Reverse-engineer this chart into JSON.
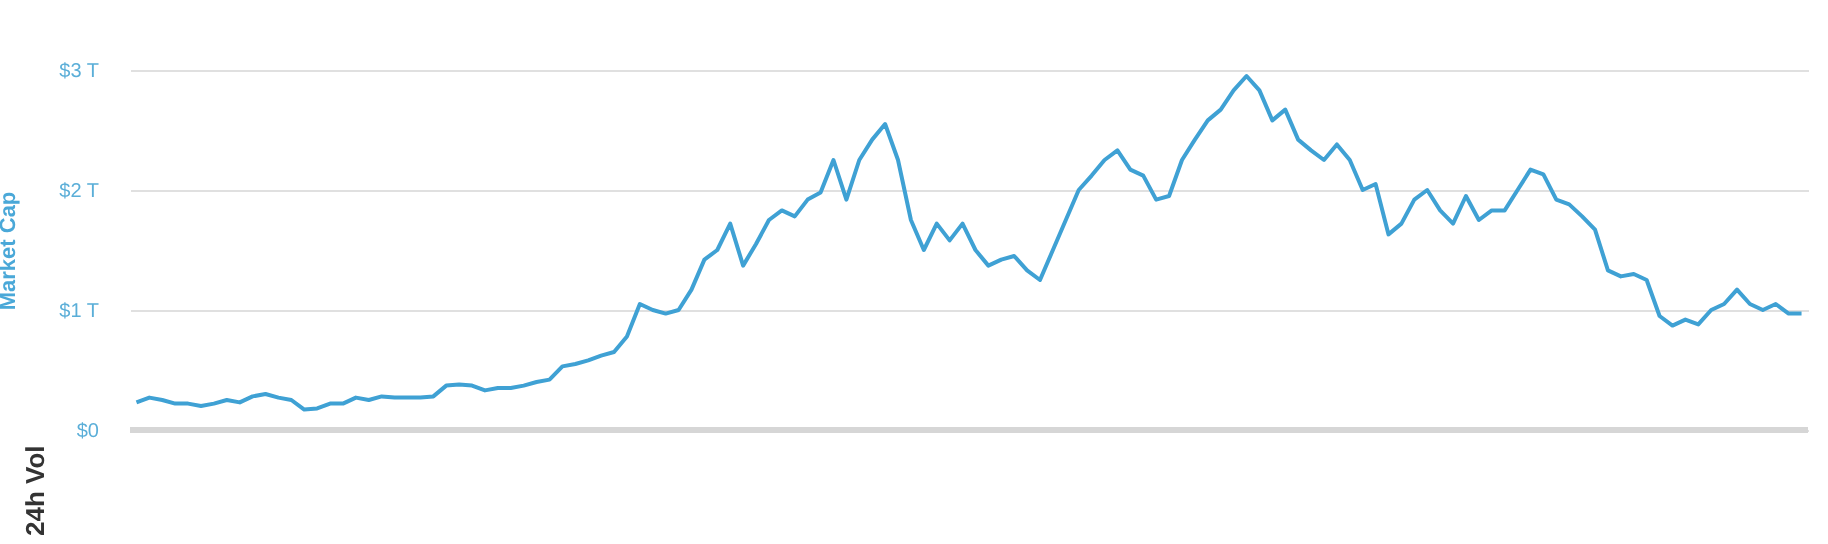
{
  "chart_data": {
    "type": "line",
    "ylabel": "Market Cap",
    "annotations": [
      "24h Vol"
    ],
    "grid": "y",
    "ylim": [
      0,
      3
    ],
    "yticks": [
      {
        "value": 0,
        "label": "$0"
      },
      {
        "value": 1,
        "label": "$1 T"
      },
      {
        "value": 2,
        "label": "$2 T"
      },
      {
        "value": 3,
        "label": "$3 T"
      }
    ],
    "categories": [
      null,
      null,
      null,
      null,
      null,
      null,
      null,
      null,
      null,
      null,
      null,
      null,
      null,
      null,
      null,
      null,
      null,
      null,
      null,
      null,
      null,
      null,
      null,
      null,
      null,
      null,
      null,
      null,
      null,
      null,
      null,
      null,
      null,
      null,
      null,
      null,
      null,
      null,
      null,
      null,
      null,
      null,
      null,
      null,
      null,
      null,
      null,
      null,
      null,
      null,
      null,
      null,
      null,
      null,
      null,
      null,
      null,
      null,
      null,
      null,
      null,
      null,
      null,
      null,
      null,
      null,
      null,
      null,
      null,
      null,
      null,
      null,
      null,
      null,
      null,
      null,
      null,
      null,
      null,
      null,
      null,
      null,
      null,
      null,
      null,
      null,
      null,
      null,
      null,
      null,
      null,
      null,
      null,
      null,
      null,
      null,
      null,
      null,
      null,
      null,
      null,
      null,
      null,
      null,
      null,
      null,
      null,
      null,
      null,
      null,
      null,
      null,
      null,
      null,
      null,
      null,
      null,
      null,
      null,
      null,
      null,
      null,
      null,
      null,
      null,
      null,
      null,
      null,
      null,
      null
    ],
    "series": [
      {
        "color": "#3fa1d4",
        "values": [
          0.23,
          0.27,
          0.25,
          0.22,
          0.22,
          0.2,
          0.22,
          0.25,
          0.23,
          0.28,
          0.3,
          0.27,
          0.25,
          0.17,
          0.18,
          0.22,
          0.22,
          0.27,
          0.25,
          0.28,
          0.27,
          0.27,
          0.27,
          0.28,
          0.37,
          0.38,
          0.37,
          0.33,
          0.35,
          0.35,
          0.37,
          0.4,
          0.42,
          0.53,
          0.55,
          0.58,
          0.62,
          0.65,
          0.78,
          1.05,
          1.0,
          0.97,
          1.0,
          1.17,
          1.42,
          1.5,
          1.72,
          1.37,
          1.55,
          1.75,
          1.83,
          1.78,
          1.92,
          1.98,
          2.25,
          1.92,
          2.25,
          2.42,
          2.55,
          2.25,
          1.75,
          1.5,
          1.72,
          1.58,
          1.72,
          1.5,
          1.37,
          1.42,
          1.45,
          1.33,
          1.25,
          1.5,
          1.75,
          2.0,
          2.12,
          2.25,
          2.33,
          2.17,
          2.12,
          1.92,
          1.95,
          2.25,
          2.42,
          2.58,
          2.67,
          2.83,
          2.95,
          2.83,
          2.58,
          2.67,
          2.42,
          2.33,
          2.25,
          2.38,
          2.25,
          2.0,
          2.05,
          1.63,
          1.72,
          1.92,
          2.0,
          1.83,
          1.72,
          1.95,
          1.75,
          1.83,
          1.83,
          2.0,
          2.17,
          2.13,
          1.92,
          1.88,
          1.78,
          1.67,
          1.33,
          1.28,
          1.3,
          1.25,
          0.95,
          0.87,
          0.92,
          0.88,
          1.0,
          1.05,
          1.17,
          1.05,
          1.0,
          1.05,
          0.97,
          0.97
        ]
      }
    ]
  }
}
